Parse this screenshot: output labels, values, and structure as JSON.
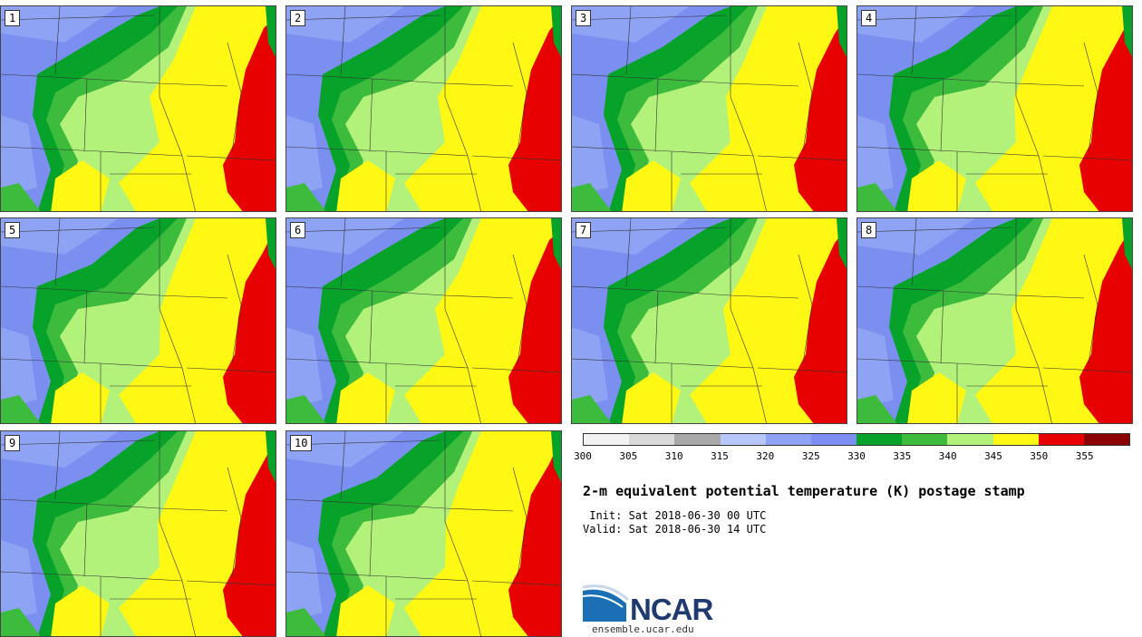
{
  "members": [
    "1",
    "2",
    "3",
    "4",
    "5",
    "6",
    "7",
    "8",
    "9",
    "10"
  ],
  "colors": {
    "c305": "#f2f2f2",
    "c310": "#d9d9d9",
    "c315": "#a9a9a9",
    "c320": "#b7c7f7",
    "c325": "#8ea3f3",
    "c330": "#7a8ff0",
    "c335": "#06a22a",
    "c340": "#3dbb3d",
    "c345": "#b3f27a",
    "c350": "#fff714",
    "c355": "#e60000",
    "c360": "#8b0000"
  },
  "colorbar": {
    "ticks": [
      "300",
      "305",
      "310",
      "315",
      "320",
      "325",
      "330",
      "335",
      "340",
      "345",
      "350",
      "355"
    ]
  },
  "title": "2-m equivalent potential temperature (K) postage stamp",
  "init": " Init: Sat 2018-06-30 00 UTC",
  "valid": "Valid: Sat 2018-06-30 14 UTC",
  "logo_text": "NCAR",
  "url": "ensemble.ucar.edu"
}
